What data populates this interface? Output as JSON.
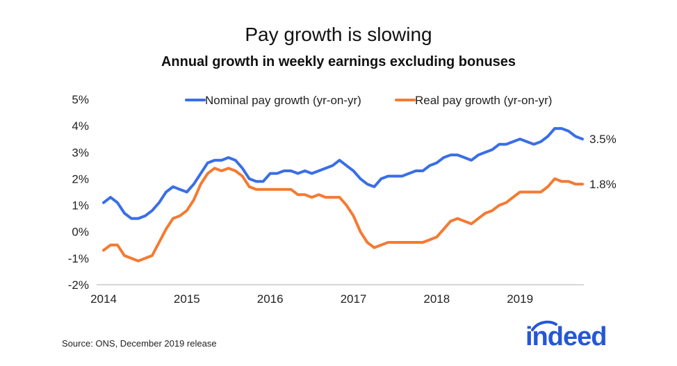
{
  "chart_data": {
    "type": "line",
    "title": "Pay growth is slowing",
    "subtitle": "Annual growth in weekly earnings excluding bonuses",
    "xlabel": "",
    "ylabel": "",
    "ylim": [
      -2,
      5
    ],
    "xlim": [
      "2014-01",
      "2019-12"
    ],
    "y_ticks": [
      "5%",
      "4%",
      "3%",
      "2%",
      "1%",
      "0%",
      "-1%",
      "-2%"
    ],
    "x_ticks": [
      "2014",
      "2015",
      "2016",
      "2017",
      "2018",
      "2019"
    ],
    "grid": false,
    "legend_position": "top-right",
    "x": [
      "2014-01",
      "2014-02",
      "2014-03",
      "2014-04",
      "2014-05",
      "2014-06",
      "2014-07",
      "2014-08",
      "2014-09",
      "2014-10",
      "2014-11",
      "2014-12",
      "2015-01",
      "2015-02",
      "2015-03",
      "2015-04",
      "2015-05",
      "2015-06",
      "2015-07",
      "2015-08",
      "2015-09",
      "2015-10",
      "2015-11",
      "2015-12",
      "2016-01",
      "2016-02",
      "2016-03",
      "2016-04",
      "2016-05",
      "2016-06",
      "2016-07",
      "2016-08",
      "2016-09",
      "2016-10",
      "2016-11",
      "2016-12",
      "2017-01",
      "2017-02",
      "2017-03",
      "2017-04",
      "2017-05",
      "2017-06",
      "2017-07",
      "2017-08",
      "2017-09",
      "2017-10",
      "2017-11",
      "2017-12",
      "2018-01",
      "2018-02",
      "2018-03",
      "2018-04",
      "2018-05",
      "2018-06",
      "2018-07",
      "2018-08",
      "2018-09",
      "2018-10",
      "2018-11",
      "2018-12",
      "2019-01",
      "2019-02",
      "2019-03",
      "2019-04",
      "2019-05",
      "2019-06",
      "2019-07",
      "2019-08",
      "2019-09",
      "2019-10"
    ],
    "series": [
      {
        "name": "Nominal pay growth (yr-on-yr)",
        "color": "#3a6ee6",
        "end_label": "3.5%",
        "values": [
          1.1,
          1.3,
          1.1,
          0.7,
          0.5,
          0.5,
          0.6,
          0.8,
          1.1,
          1.5,
          1.7,
          1.6,
          1.5,
          1.8,
          2.2,
          2.6,
          2.7,
          2.7,
          2.8,
          2.7,
          2.4,
          2.0,
          1.9,
          1.9,
          2.2,
          2.2,
          2.3,
          2.3,
          2.2,
          2.3,
          2.2,
          2.3,
          2.4,
          2.5,
          2.7,
          2.5,
          2.3,
          2.0,
          1.8,
          1.7,
          2.0,
          2.1,
          2.1,
          2.1,
          2.2,
          2.3,
          2.3,
          2.5,
          2.6,
          2.8,
          2.9,
          2.9,
          2.8,
          2.7,
          2.9,
          3.0,
          3.1,
          3.3,
          3.3,
          3.4,
          3.5,
          3.4,
          3.3,
          3.4,
          3.6,
          3.9,
          3.9,
          3.8,
          3.6,
          3.5
        ]
      },
      {
        "name": "Real pay growth (yr-on-yr)",
        "color": "#f47a32",
        "end_label": "1.8%",
        "values": [
          -0.7,
          -0.5,
          -0.5,
          -0.9,
          -1.0,
          -1.1,
          -1.0,
          -0.9,
          -0.4,
          0.1,
          0.5,
          0.6,
          0.8,
          1.2,
          1.8,
          2.2,
          2.4,
          2.3,
          2.4,
          2.3,
          2.1,
          1.7,
          1.6,
          1.6,
          1.6,
          1.6,
          1.6,
          1.6,
          1.4,
          1.4,
          1.3,
          1.4,
          1.3,
          1.3,
          1.3,
          1.0,
          0.6,
          0.0,
          -0.4,
          -0.6,
          -0.5,
          -0.4,
          -0.4,
          -0.4,
          -0.4,
          -0.4,
          -0.4,
          -0.3,
          -0.2,
          0.1,
          0.4,
          0.5,
          0.4,
          0.3,
          0.5,
          0.7,
          0.8,
          1.0,
          1.1,
          1.3,
          1.5,
          1.5,
          1.5,
          1.5,
          1.7,
          2.0,
          1.9,
          1.9,
          1.8,
          1.8
        ]
      }
    ]
  },
  "source_note": "Source: ONS, December 2019 release",
  "logo_text": "indeed",
  "colors": {
    "logo": "#2557d6"
  }
}
